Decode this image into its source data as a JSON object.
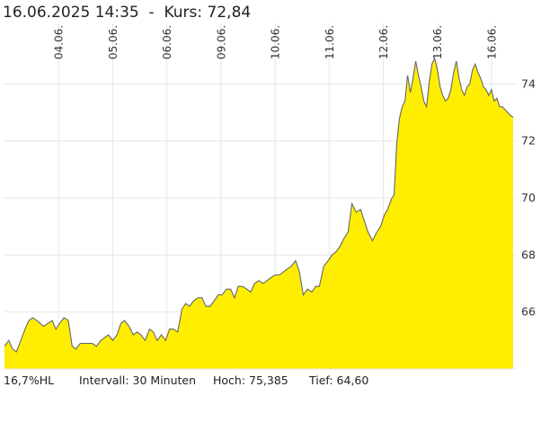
{
  "header": {
    "title": "16.06.2025 14:35  -  Kurs: 72,84"
  },
  "footer": {
    "hl": "16,7%HL",
    "interval": "Intervall: 30 Minuten",
    "high": "Hoch:  75,385",
    "low": "Tief:   64,60"
  },
  "colors": {
    "fill": "#ffee00",
    "line": "#666666",
    "grid": "#e6e6e6"
  },
  "chart_data": {
    "type": "area",
    "title": "",
    "xlabel": "",
    "ylabel": "",
    "ylim": [
      64.0,
      76.0
    ],
    "y_ticks": [
      66,
      68,
      70,
      72,
      74
    ],
    "x_ticks": [
      {
        "label": "04.06.",
        "pos": 1
      },
      {
        "label": "05.06.",
        "pos": 2
      },
      {
        "label": "06.06.",
        "pos": 3
      },
      {
        "label": "09.06.",
        "pos": 4
      },
      {
        "label": "10.06.",
        "pos": 5
      },
      {
        "label": "11.06.",
        "pos": 6
      },
      {
        "label": "12.06.",
        "pos": 7
      },
      {
        "label": "13.06.",
        "pos": 8
      },
      {
        "label": "16.06.",
        "pos": 9
      }
    ],
    "x_range": [
      0,
      9.45
    ],
    "series": [
      {
        "name": "",
        "x": [
          0.0,
          0.08,
          0.15,
          0.22,
          0.3,
          0.38,
          0.45,
          0.52,
          0.6,
          0.66,
          0.72,
          0.8,
          0.88,
          0.95,
          1.02,
          1.1,
          1.18,
          1.25,
          1.32,
          1.4,
          1.48,
          1.55,
          1.62,
          1.7,
          1.78,
          1.85,
          1.92,
          2.0,
          2.08,
          2.15,
          2.22,
          2.3,
          2.38,
          2.45,
          2.52,
          2.6,
          2.68,
          2.75,
          2.82,
          2.9,
          2.98,
          3.05,
          3.12,
          3.2,
          3.28,
          3.35,
          3.42,
          3.5,
          3.58,
          3.65,
          3.72,
          3.8,
          3.88,
          3.95,
          4.02,
          4.1,
          4.18,
          4.25,
          4.32,
          4.4,
          4.48,
          4.55,
          4.62,
          4.7,
          4.78,
          4.85,
          4.92,
          5.0,
          5.08,
          5.15,
          5.22,
          5.3,
          5.38,
          5.45,
          5.52,
          5.6,
          5.68,
          5.75,
          5.82,
          5.9,
          5.98,
          6.05,
          6.12,
          6.2,
          6.28,
          6.35,
          6.42,
          6.5,
          6.58,
          6.65,
          6.72,
          6.8,
          6.88,
          6.95,
          7.02,
          7.08,
          7.12,
          7.16,
          7.2,
          7.25,
          7.3,
          7.35,
          7.4,
          7.45,
          7.5,
          7.55,
          7.6,
          7.65,
          7.7,
          7.75,
          7.8,
          7.85,
          7.9,
          7.95,
          8.0,
          8.05,
          8.1,
          8.15,
          8.2,
          8.25,
          8.3,
          8.35,
          8.4,
          8.45,
          8.5,
          8.55,
          8.6,
          8.65,
          8.7,
          8.75,
          8.8,
          8.85,
          8.9,
          8.95,
          9.0,
          9.05,
          9.1,
          9.15,
          9.2,
          9.25,
          9.3,
          9.35,
          9.4
        ],
        "values": [
          64.8,
          65.0,
          64.7,
          64.6,
          65.0,
          65.4,
          65.7,
          65.8,
          65.7,
          65.6,
          65.5,
          65.6,
          65.7,
          65.4,
          65.6,
          65.8,
          65.7,
          64.8,
          64.7,
          64.9,
          64.9,
          64.9,
          64.9,
          64.8,
          65.0,
          65.1,
          65.2,
          65.0,
          65.2,
          65.6,
          65.7,
          65.5,
          65.2,
          65.3,
          65.2,
          65.0,
          65.4,
          65.3,
          65.0,
          65.2,
          65.0,
          65.4,
          65.4,
          65.3,
          66.1,
          66.3,
          66.2,
          66.4,
          66.5,
          66.5,
          66.2,
          66.2,
          66.4,
          66.6,
          66.6,
          66.8,
          66.8,
          66.5,
          66.9,
          66.9,
          66.8,
          66.7,
          67.0,
          67.1,
          67.0,
          67.1,
          67.2,
          67.3,
          67.3,
          67.4,
          67.5,
          67.6,
          67.8,
          67.4,
          66.6,
          66.8,
          66.7,
          66.9,
          66.9,
          67.6,
          67.8,
          68.0,
          68.1,
          68.3,
          68.6,
          68.8,
          69.8,
          69.5,
          69.6,
          69.2,
          68.8,
          68.5,
          68.8,
          69.0,
          69.4,
          69.6,
          69.8,
          70.0,
          70.1,
          71.9,
          72.8,
          73.2,
          73.4,
          74.3,
          73.7,
          74.2,
          74.8,
          74.3,
          73.9,
          73.4,
          73.2,
          74.1,
          74.7,
          74.9,
          74.5,
          73.9,
          73.6,
          73.4,
          73.5,
          73.8,
          74.4,
          74.8,
          74.2,
          73.8,
          73.6,
          73.9,
          74.0,
          74.5,
          74.7,
          74.4,
          74.2,
          73.9,
          73.8,
          73.6,
          73.8,
          73.4,
          73.5,
          73.2,
          73.2,
          73.1,
          73.0,
          72.9,
          72.84
        ]
      }
    ]
  }
}
